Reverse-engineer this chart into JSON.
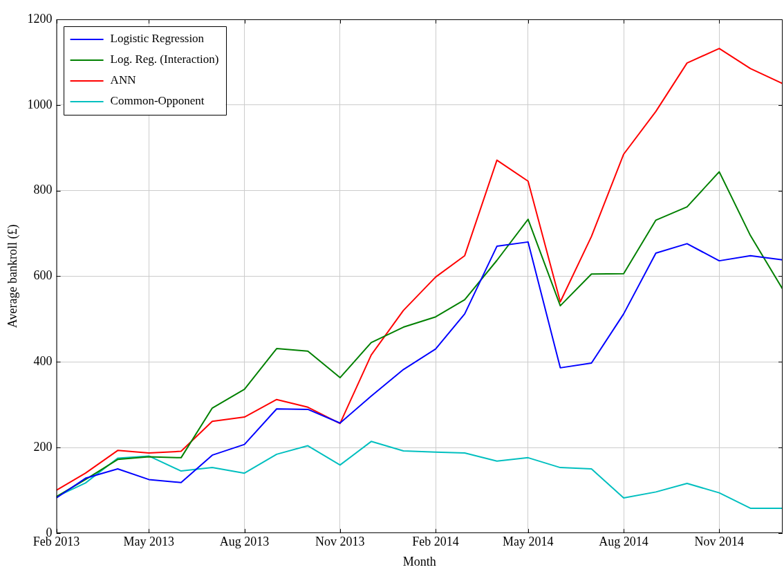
{
  "chart_data": {
    "type": "line",
    "xlabel": "Month",
    "ylabel": "Average bankroll (£)",
    "x": [
      "2013-02",
      "2013-03",
      "2013-04",
      "2013-05",
      "2013-06",
      "2013-07",
      "2013-08",
      "2013-09",
      "2013-10",
      "2013-11",
      "2013-12",
      "2014-01",
      "2014-02",
      "2014-03",
      "2014-04",
      "2014-05",
      "2014-06",
      "2014-07",
      "2014-08",
      "2014-09",
      "2014-10",
      "2014-11",
      "2014-12",
      "2015-01"
    ],
    "series": [
      {
        "name": "Logistic Regression",
        "color": "#0000ff",
        "values": [
          82,
          128,
          150,
          125,
          118,
          182,
          207,
          290,
          289,
          257,
          320,
          382,
          430,
          512,
          670,
          680,
          386,
          397,
          512,
          654,
          676,
          636,
          648,
          638
        ]
      },
      {
        "name": "Log. Reg. (Interaction)",
        "color": "#008000",
        "values": [
          85,
          125,
          172,
          178,
          176,
          292,
          336,
          431,
          425,
          363,
          445,
          481,
          505,
          545,
          637,
          733,
          531,
          605,
          606,
          731,
          762,
          844,
          695,
          570
        ]
      },
      {
        "name": "ANN",
        "color": "#ff0000",
        "values": [
          100,
          140,
          193,
          187,
          191,
          261,
          271,
          312,
          294,
          256,
          416,
          520,
          598,
          648,
          871,
          822,
          540,
          693,
          885,
          985,
          1098,
          1132,
          1085,
          1050
        ]
      },
      {
        "name": "Common-Opponent",
        "color": "#00bfbf",
        "values": [
          85,
          117,
          175,
          180,
          145,
          153,
          140,
          184,
          204,
          159,
          214,
          192,
          189,
          187,
          168,
          176,
          153,
          150,
          82,
          96,
          116,
          94,
          58,
          58
        ]
      }
    ],
    "xlim": [
      "2013-02",
      "2015-01"
    ],
    "xticks": [
      {
        "value": "2013-02",
        "label": "Feb 2013"
      },
      {
        "value": "2013-05",
        "label": "May 2013"
      },
      {
        "value": "2013-08",
        "label": "Aug 2013"
      },
      {
        "value": "2013-11",
        "label": "Nov 2013"
      },
      {
        "value": "2014-02",
        "label": "Feb 2014"
      },
      {
        "value": "2014-05",
        "label": "May 2014"
      },
      {
        "value": "2014-08",
        "label": "Aug 2014"
      },
      {
        "value": "2014-11",
        "label": "Nov 2014"
      }
    ],
    "ylim": [
      0,
      1200
    ],
    "yticks": [
      0,
      200,
      400,
      600,
      800,
      1000,
      1200
    ],
    "grid": true,
    "legend": "top left",
    "marker": "none",
    "line_style": "solid"
  }
}
